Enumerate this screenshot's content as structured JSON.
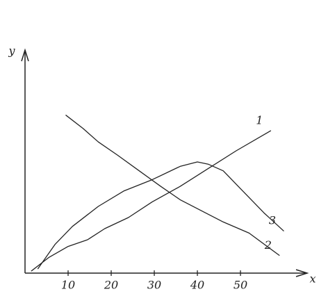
{
  "chart_data": {
    "type": "line",
    "x_label": "x",
    "y_label": "y",
    "xlim": [
      0,
      65
    ],
    "ylim": [
      0,
      100
    ],
    "xticks": [
      10,
      20,
      30,
      40,
      50
    ],
    "series": [
      {
        "name": "1",
        "color": "#222222",
        "x": [
          1.5,
          5.5,
          10,
          14.5,
          18.5,
          24,
          29.5,
          36,
          42.5,
          49,
          57
        ],
        "values": [
          1,
          7,
          12,
          15,
          20,
          25,
          32,
          39,
          47,
          55,
          64
        ]
      },
      {
        "name": "2",
        "color": "#222222",
        "x": [
          9.5,
          13.5,
          17,
          21.5,
          26.5,
          31.5,
          36,
          41,
          46,
          52,
          59
        ],
        "values": [
          71,
          65,
          59,
          53,
          46,
          39,
          33,
          28,
          23,
          18,
          8
        ]
      },
      {
        "name": "3",
        "color": "#222222",
        "x": [
          3,
          7,
          11,
          17,
          23,
          29.5,
          36,
          40,
          42.5,
          46,
          50,
          55.5,
          60
        ],
        "values": [
          2,
          13,
          21,
          30,
          37,
          42,
          48,
          50,
          49,
          46,
          38,
          27,
          19
        ]
      }
    ]
  }
}
